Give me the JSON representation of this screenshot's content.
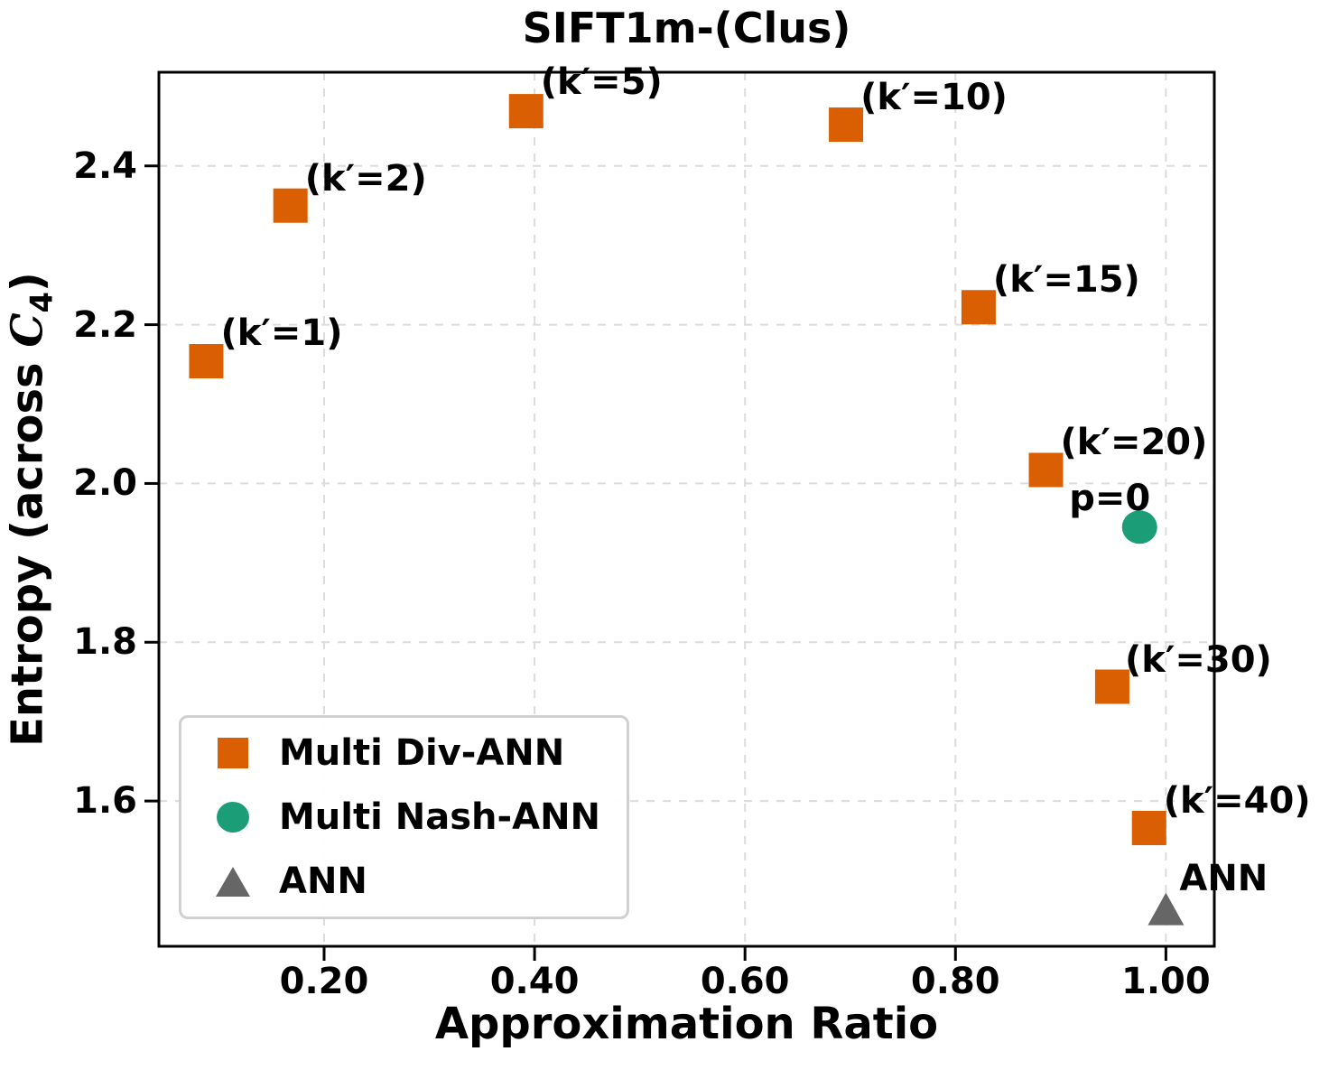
{
  "chart_data": {
    "type": "scatter",
    "title": "SIFT1m-(Clus)",
    "xlabel": "Approximation Ratio",
    "ylabel": {
      "prefix": "Entropy (across ",
      "math_var": "C",
      "math_sub": "4",
      "suffix": ")"
    },
    "xlim": [
      0.043,
      1.046
    ],
    "ylim": [
      1.417,
      2.518
    ],
    "xticks": {
      "values": [
        0.2,
        0.4,
        0.6,
        0.8,
        1.0
      ],
      "labels": [
        "0.20",
        "0.40",
        "0.60",
        "0.80",
        "1.00"
      ]
    },
    "yticks": {
      "values": [
        1.6,
        1.8,
        2.0,
        2.2,
        2.4
      ],
      "labels": [
        "1.6",
        "1.8",
        "2.0",
        "2.2",
        "2.4"
      ]
    },
    "grid": {
      "show": true,
      "style": "dashed",
      "color": "#dcdcdc"
    },
    "legend": {
      "position": "lower left"
    },
    "series": [
      {
        "name": "Multi Div-ANN",
        "marker": "square",
        "color": "#d95f02",
        "points": [
          {
            "x": 0.088,
            "y": 2.154,
            "label": "(k′=1)",
            "label_dx": 16,
            "label_dy": -31
          },
          {
            "x": 0.168,
            "y": 2.35,
            "label": "(k′=2)",
            "label_dx": 16,
            "label_dy": -30
          },
          {
            "x": 0.392,
            "y": 2.469,
            "label": "(k′=5)",
            "label_dx": 16,
            "label_dy": -32
          },
          {
            "x": 0.696,
            "y": 2.452,
            "label": "(k′=10)",
            "label_dx": 16,
            "label_dy": -30
          },
          {
            "x": 0.822,
            "y": 2.222,
            "label": "(k′=15)",
            "label_dx": 16,
            "label_dy": -30
          },
          {
            "x": 0.886,
            "y": 2.017,
            "label": "(k′=20)",
            "label_dx": 16,
            "label_dy": -30
          },
          {
            "x": 0.949,
            "y": 1.744,
            "label": "(k′=30)",
            "label_dx": 14,
            "label_dy": -30
          },
          {
            "x": 0.984,
            "y": 1.566,
            "label": "(k′=40)",
            "label_dx": 16,
            "label_dy": -30
          }
        ]
      },
      {
        "name": "Multi Nash-ANN",
        "marker": "circle",
        "color": "#1b9e77",
        "points": [
          {
            "x": 0.975,
            "y": 1.945,
            "label": "p=0",
            "label_dx": -78,
            "label_dy": -32
          }
        ]
      },
      {
        "name": "ANN",
        "marker": "triangle",
        "color": "#666666",
        "points": [
          {
            "x": 1.0,
            "y": 1.464,
            "label": "ANN",
            "label_dx": 15,
            "label_dy": -34
          }
        ]
      }
    ]
  }
}
